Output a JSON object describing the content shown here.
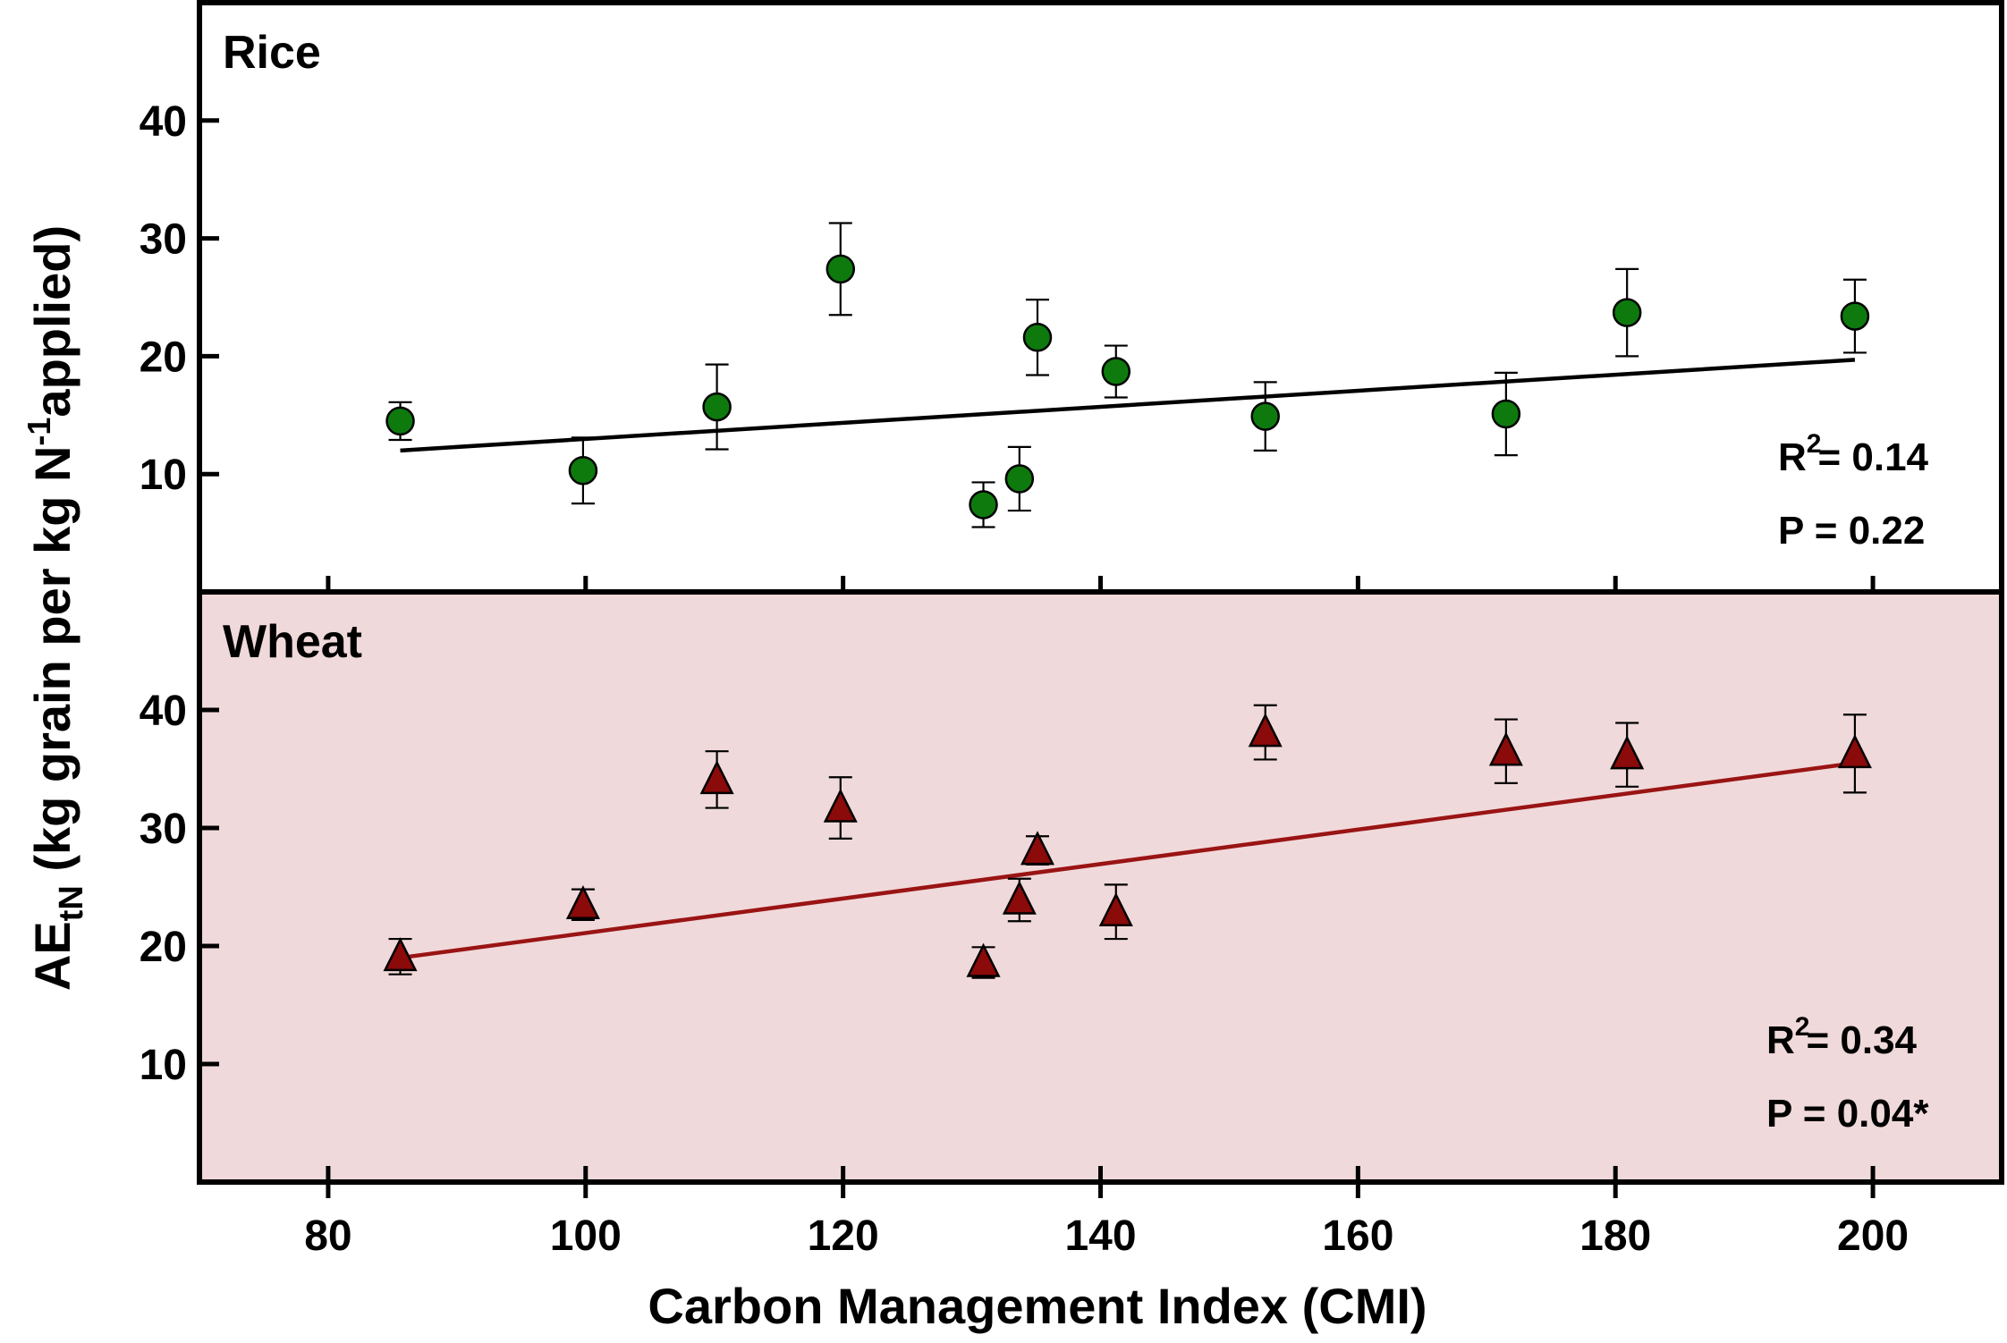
{
  "chart_data": {
    "type": "scatter",
    "xlabel": "Carbon Management Index (CMI)",
    "ylabel": {
      "main": "AE",
      "subscript": "tN",
      "rest": " (kg grain per kg N",
      "superscript": "-1",
      "end": "applied)"
    },
    "xlim": [
      70,
      210
    ],
    "xticks": [
      80,
      100,
      120,
      140,
      160,
      180,
      200
    ],
    "xtick_labels": [
      "80",
      "100",
      "120",
      "140",
      "160",
      "180",
      "200"
    ],
    "panels": [
      {
        "title": "Rice",
        "ylim": [
          0,
          50
        ],
        "yticks": [
          10,
          20,
          30,
          40
        ],
        "ytick_labels": [
          "10",
          "20",
          "30",
          "40"
        ],
        "marker": "circle",
        "color": "#0e7a0e",
        "line_color": "#000000",
        "background": "#ffffff",
        "x": [
          85.6,
          99.8,
          110.2,
          119.8,
          130.9,
          133.7,
          135.1,
          141.2,
          152.8,
          171.5,
          180.9,
          198.6
        ],
        "y": [
          14.5,
          10.3,
          15.7,
          27.4,
          7.4,
          9.6,
          21.6,
          18.7,
          14.9,
          15.1,
          23.7,
          23.4
        ],
        "err": [
          1.6,
          2.8,
          3.6,
          3.9,
          1.9,
          2.7,
          3.2,
          2.2,
          2.9,
          3.5,
          3.7,
          3.1
        ],
        "fit": {
          "x": [
            85.6,
            198.6
          ],
          "y": [
            12.0,
            19.7
          ]
        },
        "stat_r2_label": "R",
        "stat_r2_sup": "2",
        "stat_r2_value": "= 0.14",
        "stat_p": "P = 0.22"
      },
      {
        "title": "Wheat",
        "ylim": [
          0,
          50
        ],
        "yticks": [
          10,
          20,
          30,
          40
        ],
        "ytick_labels": [
          "10",
          "20",
          "30",
          "40"
        ],
        "marker": "triangle",
        "color": "#8b0a0a",
        "line_color": "#9a1414",
        "background": "#f0d9da",
        "x": [
          85.6,
          99.8,
          110.2,
          119.8,
          130.9,
          133.7,
          135.1,
          141.2,
          152.8,
          171.5,
          180.9,
          198.6
        ],
        "y": [
          19.1,
          23.5,
          34.1,
          31.7,
          18.6,
          23.9,
          28.1,
          22.9,
          38.1,
          36.5,
          36.2,
          36.3
        ],
        "err": [
          1.5,
          1.3,
          2.4,
          2.6,
          1.3,
          1.8,
          1.2,
          2.3,
          2.3,
          2.7,
          2.7,
          3.3
        ],
        "fit": {
          "x": [
            85.6,
            198.6
          ],
          "y": [
            19.0,
            35.5
          ]
        },
        "stat_r2_label": "R",
        "stat_r2_sup": "2",
        "stat_r2_value": "= 0.34",
        "stat_p": "P = 0.04*"
      }
    ]
  }
}
